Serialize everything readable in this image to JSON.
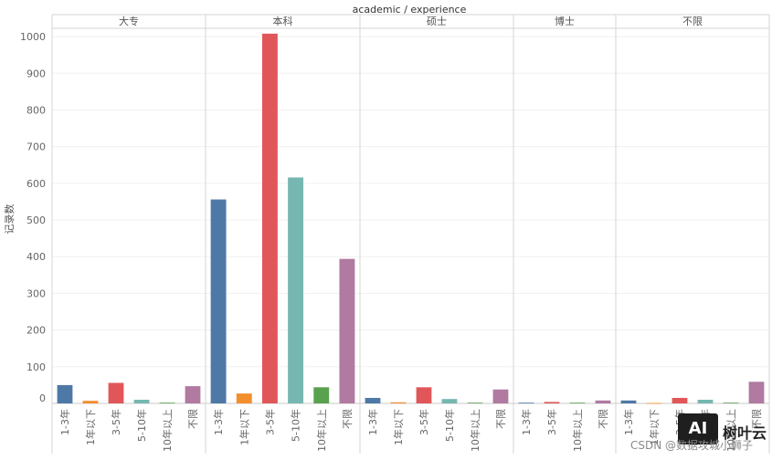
{
  "chart_data": {
    "type": "bar",
    "title": "academic / experience",
    "ylabel": "记录数",
    "ylim": [
      0,
      1050
    ],
    "yticks": [
      0,
      100,
      200,
      300,
      400,
      500,
      600,
      700,
      800,
      900,
      1000
    ],
    "grid": true,
    "colors": {
      "1-3年": "#4e79a7",
      "1年以下": "#f28e2b",
      "3-5年": "#e15759",
      "5-10年": "#76b7b2",
      "10年以上": "#59a14f",
      "不限": "#b07aa1"
    },
    "panels": [
      {
        "name": "大专",
        "categories": [
          "1-3年",
          "1年以下",
          "3-5年",
          "5-10年",
          "10年以上",
          "不限"
        ],
        "values": [
          50,
          7,
          56,
          10,
          2,
          47
        ]
      },
      {
        "name": "本科",
        "categories": [
          "1-3年",
          "1年以下",
          "3-5年",
          "5-10年",
          "10年以上",
          "不限"
        ],
        "values": [
          556,
          27,
          1008,
          616,
          44,
          394
        ]
      },
      {
        "name": "硕士",
        "categories": [
          "1-3年",
          "1年以下",
          "3-5年",
          "5-10年",
          "10年以上",
          "不限"
        ],
        "values": [
          15,
          3,
          44,
          12,
          2,
          38
        ]
      },
      {
        "name": "博士",
        "categories": [
          "1-3年",
          "3-5年",
          "10年以上",
          "不限"
        ],
        "values": [
          2,
          4,
          2,
          8
        ]
      },
      {
        "name": "不限",
        "categories": [
          "1-3年",
          "1年以下",
          "3-5年",
          "5-10年",
          "10年以上",
          "不限"
        ],
        "values": [
          8,
          1,
          15,
          10,
          2,
          59
        ]
      }
    ]
  },
  "watermark": {
    "logo_text": "AI",
    "brand": "树叶云",
    "credit": "CSDN @数据攻城小狮子"
  }
}
